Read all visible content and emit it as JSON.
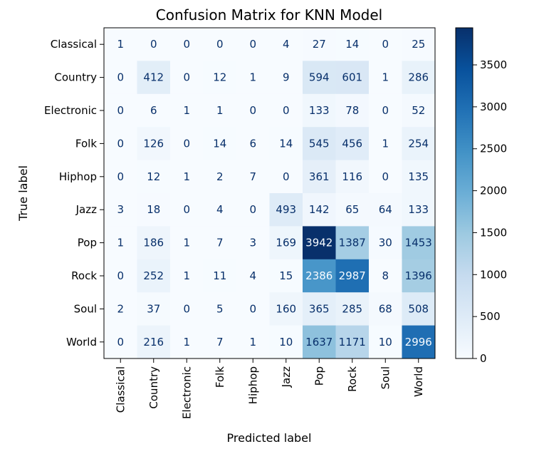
{
  "chart_data": {
    "type": "heatmap",
    "title": "Confusion Matrix for KNN Model",
    "xlabel": "Predicted label",
    "ylabel": "True label",
    "labels": [
      "Classical",
      "Country",
      "Electronic",
      "Folk",
      "Hiphop",
      "Jazz",
      "Pop",
      "Rock",
      "Soul",
      "World"
    ],
    "matrix": [
      [
        1,
        0,
        0,
        0,
        0,
        4,
        27,
        14,
        0,
        25
      ],
      [
        0,
        412,
        0,
        12,
        1,
        9,
        594,
        601,
        1,
        286
      ],
      [
        0,
        6,
        1,
        1,
        0,
        0,
        133,
        78,
        0,
        52
      ],
      [
        0,
        126,
        0,
        14,
        6,
        14,
        545,
        456,
        1,
        254
      ],
      [
        0,
        12,
        1,
        2,
        7,
        0,
        361,
        116,
        0,
        135
      ],
      [
        3,
        18,
        0,
        4,
        0,
        493,
        142,
        65,
        64,
        133
      ],
      [
        1,
        186,
        1,
        7,
        3,
        169,
        3942,
        1387,
        30,
        1453
      ],
      [
        0,
        252,
        1,
        11,
        4,
        15,
        2386,
        2987,
        8,
        1396
      ],
      [
        2,
        37,
        0,
        5,
        0,
        160,
        365,
        285,
        68,
        508
      ],
      [
        0,
        216,
        1,
        7,
        1,
        10,
        1637,
        1171,
        10,
        2996
      ]
    ],
    "colormap": "Blues",
    "color_range": [
      0,
      3942
    ],
    "colorbar_ticks": [
      0,
      500,
      1000,
      1500,
      2000,
      2500,
      3000,
      3500
    ]
  }
}
